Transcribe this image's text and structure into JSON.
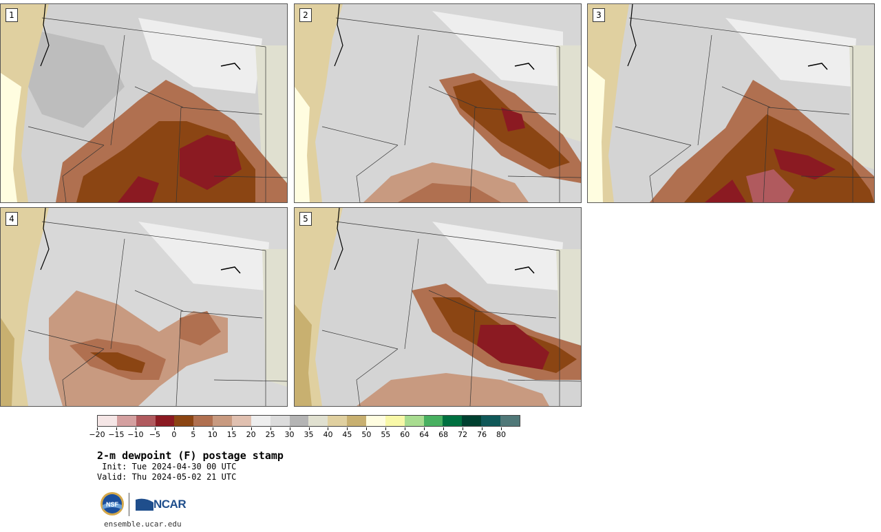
{
  "panels": [
    {
      "label": "1"
    },
    {
      "label": "2"
    },
    {
      "label": "3"
    },
    {
      "label": "4"
    },
    {
      "label": "5"
    }
  ],
  "colorbar": {
    "colors": [
      "#f5e6e6",
      "#d4a0a0",
      "#b05a5e",
      "#8b1a22",
      "#8b4513",
      "#b07050",
      "#c89a80",
      "#e0c0b0",
      "#eeeeee",
      "#dcdcdc",
      "#b4b4b4",
      "#e0e0d0",
      "#e0d0a0",
      "#c8b070",
      "#fffde0",
      "#f8f8a8",
      "#a8dc90",
      "#48b060",
      "#007040",
      "#004030",
      "#105858",
      "#507878"
    ],
    "ticks": [
      "−20",
      "−15",
      "−10",
      "−5",
      "0",
      "5",
      "10",
      "15",
      "20",
      "25",
      "30",
      "35",
      "40",
      "45",
      "50",
      "55",
      "60",
      "64",
      "68",
      "72",
      "76",
      "80"
    ]
  },
  "title": "2-m dewpoint (F) postage stamp",
  "init": " Init: Tue 2024-04-30 00 UTC",
  "valid": "Valid: Thu 2024-05-02 21 UTC",
  "logos": {
    "nsf": "NSF",
    "ncar": "NCAR"
  },
  "site": "ensemble.ucar.edu"
}
